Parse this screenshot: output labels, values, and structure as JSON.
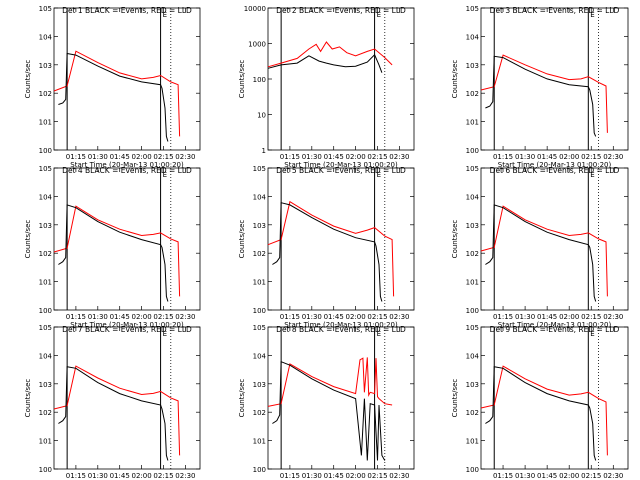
{
  "chart_data": {
    "type": "line",
    "layout": "3x3 grid",
    "y_scale": "log",
    "x_ticks": [
      "01:15",
      "01:30",
      "01:45",
      "02:00",
      "02:15",
      "02:30"
    ],
    "x_tick_minutes": [
      75,
      90,
      105,
      120,
      135,
      150
    ],
    "xlim_minutes": [
      60,
      160
    ],
    "xlabel": "Start Time (20-Mar-13 01:00:20)",
    "ylabel": "Counts/sec",
    "series_names": [
      "Events",
      "LLD"
    ],
    "series_colors": {
      "events": "#000000",
      "lld": "#ff0000"
    },
    "markers": {
      "solid_minutes": [
        69,
        133
      ],
      "dotted_minutes": [
        140
      ],
      "tick_label": "E"
    },
    "panels": [
      {
        "title": "Det 1 BLACK = Events, RED = LLD",
        "ylim": [
          1,
          100000
        ],
        "ytick_labels": [
          "10^0",
          "10^1",
          "10^2",
          "10^3",
          "10^4",
          "10^5"
        ],
        "events": {
          "x": [
            63,
            66,
            68,
            69,
            75,
            90,
            105,
            120,
            133,
            134,
            136,
            137,
            138
          ],
          "y": [
            40,
            45,
            60,
            2500,
            2200,
            900,
            400,
            250,
            200,
            150,
            30,
            3,
            2
          ]
        },
        "lld": {
          "x": [
            60,
            69,
            75,
            90,
            105,
            120,
            128,
            133,
            140,
            145,
            146
          ],
          "y": [
            120,
            180,
            3000,
            1200,
            520,
            320,
            360,
            420,
            250,
            200,
            3
          ]
        }
      },
      {
        "title": "Det 2 BLACK = Events, RED = LLD",
        "ylim": [
          1,
          10000
        ],
        "ytick_labels": [
          "1",
          "10",
          "100",
          "1000",
          "10000"
        ],
        "events": {
          "x": [
            60,
            69,
            80,
            88,
            95,
            100,
            105,
            113,
            120,
            128,
            133,
            136,
            138
          ],
          "y": [
            200,
            250,
            280,
            450,
            320,
            280,
            250,
            220,
            230,
            300,
            480,
            250,
            150
          ]
        },
        "lld": {
          "x": [
            60,
            69,
            80,
            88,
            93,
            96,
            100,
            104,
            109,
            114,
            120,
            128,
            133,
            140,
            145
          ],
          "y": [
            220,
            280,
            380,
            700,
            950,
            600,
            1100,
            700,
            800,
            550,
            450,
            600,
            700,
            400,
            250
          ]
        }
      },
      {
        "title": "Det 3 BLACK = Events, RED = LLD",
        "ylim": [
          1,
          100000
        ],
        "ytick_labels": [
          "10^0",
          "10^1",
          "10^2",
          "10^3",
          "10^4",
          "10^5"
        ],
        "events": {
          "x": [
            63,
            66,
            68,
            69,
            75,
            90,
            105,
            120,
            133,
            134,
            136,
            137,
            138
          ],
          "y": [
            30,
            35,
            50,
            2000,
            1800,
            700,
            320,
            200,
            170,
            130,
            40,
            4,
            3
          ]
        },
        "lld": {
          "x": [
            60,
            69,
            75,
            90,
            105,
            120,
            128,
            133,
            140,
            145,
            146
          ],
          "y": [
            130,
            170,
            2200,
            1000,
            480,
            300,
            320,
            380,
            240,
            180,
            4
          ]
        }
      },
      {
        "title": "Det 4 BLACK = Events, RED = LLD",
        "ylim": [
          1,
          100000
        ],
        "ytick_labels": [
          "10^0",
          "10^1",
          "10^2",
          "10^3",
          "10^4",
          "10^5"
        ],
        "events": {
          "x": [
            63,
            66,
            68,
            69,
            75,
            90,
            105,
            120,
            133,
            134,
            136,
            137,
            138
          ],
          "y": [
            40,
            50,
            70,
            5000,
            4000,
            1300,
            550,
            300,
            200,
            160,
            40,
            3,
            2
          ]
        },
        "lld": {
          "x": [
            60,
            69,
            75,
            90,
            105,
            120,
            128,
            133,
            140,
            145,
            146
          ],
          "y": [
            110,
            150,
            4500,
            1500,
            700,
            420,
            460,
            520,
            320,
            250,
            3
          ]
        }
      },
      {
        "title": "Det 5 BLACK = Events, RED = LLD",
        "ylim": [
          1,
          100000
        ],
        "ytick_labels": [
          "10^0",
          "10^1",
          "10^2",
          "10^3",
          "10^4",
          "10^5"
        ],
        "events": {
          "x": [
            63,
            66,
            68,
            69,
            75,
            90,
            105,
            120,
            133,
            134,
            136,
            137,
            138
          ],
          "y": [
            40,
            50,
            70,
            6000,
            5000,
            1800,
            700,
            350,
            250,
            180,
            40,
            3,
            2
          ]
        },
        "lld": {
          "x": [
            60,
            69,
            75,
            90,
            105,
            120,
            128,
            133,
            140,
            145,
            146
          ],
          "y": [
            200,
            300,
            6500,
            2200,
            900,
            500,
            650,
            800,
            400,
            300,
            3
          ]
        }
      },
      {
        "title": "Det 6 BLACK = Events, RED = LLD",
        "ylim": [
          1,
          100000
        ],
        "ytick_labels": [
          "10^0",
          "10^1",
          "10^2",
          "10^3",
          "10^4",
          "10^5"
        ],
        "events": {
          "x": [
            63,
            66,
            68,
            69,
            75,
            90,
            105,
            120,
            133,
            134,
            136,
            137,
            138
          ],
          "y": [
            40,
            50,
            70,
            5000,
            4000,
            1300,
            550,
            300,
            200,
            160,
            40,
            3,
            2
          ]
        },
        "lld": {
          "x": [
            60,
            69,
            75,
            90,
            105,
            120,
            128,
            133,
            140,
            145,
            146
          ],
          "y": [
            120,
            160,
            4500,
            1500,
            700,
            420,
            460,
            520,
            320,
            250,
            3
          ]
        }
      },
      {
        "title": "Det 7 BLACK = Events, RED = LLD",
        "ylim": [
          1,
          100000
        ],
        "ytick_labels": [
          "10^0",
          "10^1",
          "10^2",
          "10^3",
          "10^4",
          "10^5"
        ],
        "events": {
          "x": [
            63,
            66,
            68,
            69,
            75,
            90,
            105,
            120,
            133,
            134,
            136,
            137,
            138
          ],
          "y": [
            40,
            50,
            70,
            4000,
            3500,
            1100,
            450,
            250,
            180,
            130,
            40,
            3,
            2
          ]
        },
        "lld": {
          "x": [
            60,
            69,
            75,
            90,
            105,
            120,
            128,
            133,
            140,
            145,
            146
          ],
          "y": [
            130,
            170,
            4200,
            1600,
            700,
            420,
            460,
            540,
            320,
            250,
            3
          ]
        }
      },
      {
        "title": "Det 8 BLACK = Events, RED = LLD",
        "ylim": [
          1,
          100000
        ],
        "ytick_labels": [
          "10^0",
          "10^1",
          "10^2",
          "10^3",
          "10^4",
          "10^5"
        ],
        "events": {
          "x": [
            63,
            66,
            68,
            69,
            75,
            90,
            105,
            120,
            124,
            126,
            128,
            130,
            133,
            135,
            136,
            138,
            140
          ],
          "y": [
            40,
            50,
            80,
            6000,
            4500,
            1500,
            600,
            300,
            3,
            300,
            2,
            200,
            180,
            2,
            180,
            3,
            2
          ]
        },
        "lld": {
          "x": [
            60,
            69,
            75,
            90,
            105,
            120,
            123,
            125,
            126,
            128,
            129,
            130,
            133,
            134,
            135,
            136,
            140,
            145
          ],
          "y": [
            160,
            200,
            5000,
            1800,
            800,
            450,
            7000,
            8000,
            500,
            8500,
            400,
            500,
            450,
            8000,
            350,
            300,
            200,
            180
          ]
        }
      },
      {
        "title": "Det 9 BLACK = Events, RED = LLD",
        "ylim": [
          1,
          100000
        ],
        "ytick_labels": [
          "10^0",
          "10^1",
          "10^2",
          "10^3",
          "10^4",
          "10^5"
        ],
        "events": {
          "x": [
            63,
            66,
            68,
            69,
            75,
            90,
            105,
            120,
            133,
            134,
            136,
            137,
            138
          ],
          "y": [
            40,
            50,
            70,
            4000,
            3500,
            1100,
            450,
            250,
            180,
            140,
            40,
            3,
            2
          ]
        },
        "lld": {
          "x": [
            60,
            69,
            75,
            90,
            105,
            120,
            128,
            133,
            140,
            145,
            146
          ],
          "y": [
            140,
            180,
            4200,
            1500,
            650,
            400,
            440,
            500,
            300,
            230,
            3
          ]
        }
      }
    ]
  }
}
